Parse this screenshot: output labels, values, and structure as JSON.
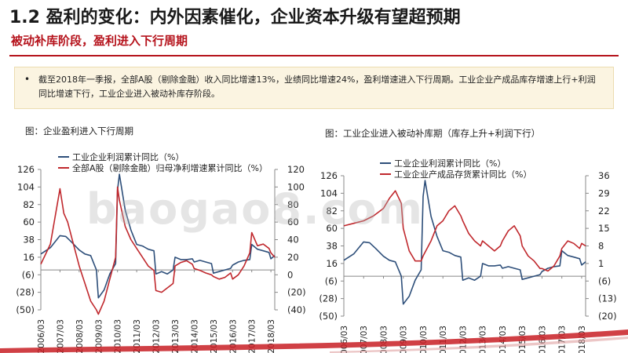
{
  "header": {
    "title": "1.2 盈利的变化：内外因素催化，企业资本升级有望超预期",
    "subtitle": "被动补库阶段，盈利进入下行周期"
  },
  "note": {
    "bullet": "•",
    "text": "截至2018年一季报，全部A股（剔除金融）收入同比增速13%，业绩同比增速24%，盈利增速进入下行周期。工业企业产成品库存增速上行+利润同比增速下行，工业企业进入被动补库存阶段。"
  },
  "watermark": "baogao8.com",
  "colors": {
    "accent": "#b5121b",
    "series_blue": "#2e4f7a",
    "series_red": "#c0282d",
    "note_bg": "#fbf4e1"
  },
  "chart_data": [
    {
      "caption": "图：企业盈利进入下行周期",
      "type": "line",
      "xlabels": [
        "2006/03",
        "2007/03",
        "2008/03",
        "2009/03",
        "2010/03",
        "2011/03",
        "2012/03",
        "2013/03",
        "2014/03",
        "2015/03",
        "2016/03",
        "2017/03",
        "2018/03"
      ],
      "y_left": {
        "ticks": [
          "126",
          "104",
          "82",
          "60",
          "38",
          "16",
          "(6)",
          "(28)",
          "(50)"
        ],
        "range": [
          -50,
          126
        ]
      },
      "y_right": {
        "ticks": [
          "120",
          "100",
          "80",
          "60",
          "40",
          "20",
          "0",
          "(20)",
          "(40)"
        ],
        "range": [
          -40,
          120
        ]
      },
      "series": [
        {
          "name": "工业企业利润累计同比（%）",
          "axis": "left",
          "color": "#2e4f7a",
          "x": [
            2006.0,
            2006.5,
            2007.0,
            2007.3,
            2007.6,
            2008.0,
            2008.3,
            2008.6,
            2008.9,
            2009.0,
            2009.3,
            2009.6,
            2009.9,
            2010.0,
            2010.1,
            2010.4,
            2010.7,
            2011.0,
            2011.3,
            2011.6,
            2011.9,
            2012.0,
            2012.3,
            2012.6,
            2012.9,
            2013.0,
            2013.3,
            2013.6,
            2013.9,
            2014.0,
            2014.3,
            2014.6,
            2014.9,
            2015.0,
            2015.3,
            2015.6,
            2015.9,
            2016.0,
            2016.3,
            2016.6,
            2016.9,
            2017.0,
            2017.3,
            2017.6,
            2017.9,
            2018.0,
            2018.2
          ],
          "y": [
            20,
            28,
            43,
            42,
            35,
            25,
            20,
            18,
            0,
            -35,
            -25,
            -5,
            8,
            100,
            120,
            75,
            50,
            32,
            30,
            26,
            24,
            -5,
            -2,
            -5,
            0,
            16,
            13,
            13,
            14,
            10,
            12,
            10,
            8,
            -4,
            -2,
            0,
            2,
            6,
            10,
            12,
            13,
            32,
            26,
            24,
            22,
            14,
            18
          ]
        },
        {
          "name": "全部A股（剔除金融）归母净利增速累计同比（%）",
          "axis": "right",
          "color": "#c0282d",
          "x": [
            2006.0,
            2006.5,
            2007.0,
            2007.2,
            2007.4,
            2007.7,
            2008.0,
            2008.3,
            2008.6,
            2008.9,
            2009.0,
            2009.3,
            2009.6,
            2009.9,
            2010.0,
            2010.1,
            2010.4,
            2010.7,
            2011.0,
            2011.3,
            2011.6,
            2011.9,
            2012.0,
            2012.3,
            2012.6,
            2012.9,
            2013.0,
            2013.3,
            2013.6,
            2013.9,
            2014.0,
            2014.3,
            2014.6,
            2014.9,
            2015.0,
            2015.3,
            2015.6,
            2015.9,
            2016.0,
            2016.3,
            2016.6,
            2016.9,
            2017.0,
            2017.3,
            2017.6,
            2017.9,
            2018.0,
            2018.2
          ],
          "y": [
            12,
            35,
            98,
            70,
            60,
            35,
            10,
            -10,
            -30,
            -40,
            -45,
            -30,
            -5,
            20,
            100,
            85,
            55,
            40,
            30,
            20,
            10,
            5,
            -18,
            -20,
            -15,
            -10,
            10,
            14,
            16,
            12,
            7,
            5,
            2,
            0,
            -2,
            -5,
            -3,
            2,
            -5,
            0,
            10,
            25,
            48,
            33,
            35,
            30,
            25,
            20
          ]
        }
      ]
    },
    {
      "caption": "图：工业企业进入被动补库期（库存上升+利润下行）",
      "type": "line",
      "xlabels": [
        "2006/03",
        "2007/03",
        "2008/03",
        "2009/03",
        "2010/03",
        "2011/03",
        "2012/03",
        "2013/03",
        "2014/03",
        "2015/03",
        "2016/03",
        "2017/03",
        "2018/03"
      ],
      "y_left": {
        "ticks": [
          "126",
          "104",
          "82",
          "60",
          "38",
          "16",
          "(6)",
          "(28)",
          "(50)"
        ],
        "range": [
          -50,
          126
        ]
      },
      "y_right": {
        "ticks": [
          "36",
          "29",
          "22",
          "15",
          "8",
          "1",
          "(6)",
          "(13)",
          "(20)"
        ],
        "range": [
          -20,
          36
        ]
      },
      "series": [
        {
          "name": "工业企业利润累计同比（%）",
          "axis": "left",
          "color": "#2e4f7a",
          "x": [
            2006.0,
            2006.5,
            2007.0,
            2007.3,
            2007.6,
            2008.0,
            2008.3,
            2008.6,
            2008.9,
            2009.0,
            2009.3,
            2009.6,
            2009.9,
            2010.0,
            2010.1,
            2010.4,
            2010.7,
            2011.0,
            2011.3,
            2011.6,
            2011.9,
            2012.0,
            2012.3,
            2012.6,
            2012.9,
            2013.0,
            2013.3,
            2013.6,
            2013.9,
            2014.0,
            2014.3,
            2014.6,
            2014.9,
            2015.0,
            2015.3,
            2015.6,
            2015.9,
            2016.0,
            2016.3,
            2016.6,
            2016.9,
            2017.0,
            2017.3,
            2017.6,
            2017.9,
            2018.0,
            2018.2
          ],
          "y": [
            20,
            28,
            43,
            42,
            35,
            25,
            20,
            18,
            0,
            -35,
            -25,
            -5,
            8,
            100,
            120,
            75,
            50,
            32,
            30,
            26,
            24,
            -5,
            -2,
            -5,
            0,
            16,
            13,
            13,
            14,
            10,
            12,
            10,
            8,
            -4,
            -2,
            0,
            2,
            6,
            10,
            12,
            13,
            32,
            26,
            24,
            22,
            14,
            18
          ]
        },
        {
          "name": "工业企业产成品存货累计同比（%）",
          "axis": "right",
          "color": "#c0282d",
          "x": [
            2006.0,
            2006.5,
            2007.0,
            2007.5,
            2008.0,
            2008.3,
            2008.6,
            2008.9,
            2009.0,
            2009.3,
            2009.6,
            2009.9,
            2010.0,
            2010.4,
            2010.7,
            2011.0,
            2011.3,
            2011.6,
            2011.9,
            2012.0,
            2012.3,
            2012.6,
            2012.9,
            2013.0,
            2013.3,
            2013.6,
            2013.9,
            2014.0,
            2014.3,
            2014.6,
            2014.9,
            2015.0,
            2015.3,
            2015.6,
            2015.9,
            2016.0,
            2016.3,
            2016.6,
            2016.9,
            2017.0,
            2017.3,
            2017.6,
            2017.9,
            2018.0,
            2018.2
          ],
          "y": [
            16,
            17,
            18,
            20,
            23,
            27,
            30,
            25,
            15,
            6,
            2,
            2,
            4,
            10,
            16,
            18,
            22,
            24,
            20,
            18,
            13,
            10,
            8,
            10,
            8,
            6,
            8,
            10,
            14,
            16,
            12,
            8,
            4,
            2,
            -1,
            -1,
            -2,
            0,
            4,
            7,
            10,
            9,
            7,
            9,
            8
          ]
        }
      ]
    }
  ]
}
